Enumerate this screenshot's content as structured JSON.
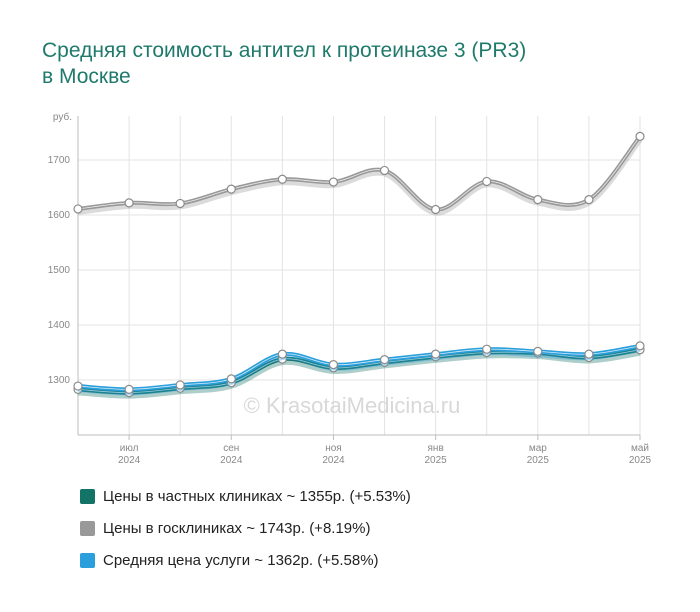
{
  "title_line1": "Средняя стоимость антител к протеиназе 3 (PR3)",
  "title_line2": "в Москве",
  "watermark": "© KrasotaiMedicina.ru",
  "chart_data": {
    "type": "line",
    "ylabel": "руб.",
    "ylim": [
      1200,
      1780
    ],
    "y_ticks": [
      "1300",
      "1400",
      "1500",
      "1600",
      "1700"
    ],
    "x": [
      "2024-06",
      "2024-07",
      "2024-08",
      "2024-09",
      "2024-10",
      "2024-11",
      "2024-12",
      "2025-01",
      "2025-02",
      "2025-03",
      "2025-04",
      "2025-05"
    ],
    "x_ticks": [
      {
        "m": "июл",
        "y": "2024"
      },
      {
        "m": "сен",
        "y": "2024"
      },
      {
        "m": "ноя",
        "y": "2024"
      },
      {
        "m": "янв",
        "y": "2025"
      },
      {
        "m": "мар",
        "y": "2025"
      },
      {
        "m": "май",
        "y": "2025"
      }
    ],
    "grid": true,
    "legend_position": "bottom",
    "series": [
      {
        "name": "Цены в частных клиниках",
        "color": "#137366",
        "values": [
          1283,
          1277,
          1285,
          1295,
          1338,
          1322,
          1332,
          1342,
          1350,
          1349,
          1341,
          1355
        ]
      },
      {
        "name": "Цены в госклиниках",
        "color": "#999999",
        "values": [
          1611,
          1622,
          1621,
          1647,
          1665,
          1660,
          1681,
          1610,
          1661,
          1628,
          1628,
          1743
        ]
      },
      {
        "name": "Средняя цена услуги",
        "color": "#2b9fdc",
        "values": [
          1289,
          1283,
          1291,
          1302,
          1347,
          1328,
          1337,
          1347,
          1356,
          1352,
          1347,
          1362
        ]
      }
    ]
  },
  "legend": [
    {
      "label": "Цены в частных клиниках ~ 1355р. (+5.53%)",
      "color": "#137366"
    },
    {
      "label": "Цены в госклиниках ~ 1743р. (+8.19%)",
      "color": "#999999"
    },
    {
      "label": "Средняя цена услуги ~ 1362р. (+5.58%)",
      "color": "#2b9fdc"
    }
  ]
}
